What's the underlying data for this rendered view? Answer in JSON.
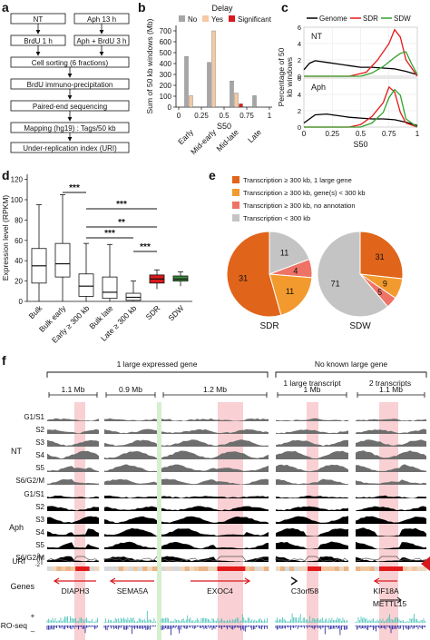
{
  "panels": {
    "a": {
      "letter": "a",
      "flow_left": [
        "NT",
        "BrdU 1 h"
      ],
      "flow_right": [
        "Aph  13 h",
        "Aph + BrdU 3 h"
      ],
      "flow_center": [
        "Cell sorting (6 fractions)",
        "BrdU immuno-precipitation",
        "Paired-end sequencing",
        "Mapping (hg19) : Tags/50 kb",
        "Under-replication index (URI)"
      ]
    },
    "b": {
      "letter": "b",
      "legend_title": "Delay",
      "legend": [
        "No",
        "Yes",
        "Significant"
      ],
      "colors": {
        "No": "#a6a6a6",
        "Yes": "#f5c9a2",
        "Significant": "#d7191c"
      }
    },
    "c": {
      "letter": "c",
      "legend": [
        "Genome",
        "SDR",
        "SDW"
      ],
      "colors": {
        "Genome": "#000000",
        "SDR": "#e31a1c",
        "SDW": "#33a02c"
      },
      "sub_labels": [
        "NT",
        "Aph"
      ]
    },
    "d": {
      "letter": "d",
      "significance": [
        "***",
        "***",
        "**",
        "***",
        "***"
      ],
      "colors": {
        "SDR": "#d7191c",
        "SDW": "#3d8b3d",
        "others": "#ffffff"
      }
    },
    "e": {
      "letter": "e",
      "legend": [
        "Transcription ≥ 300 kb, 1 large gene",
        "Transcription ≥ 300 kb, gene(s) < 300 kb",
        "Transcription ≥ 300 kb, no annotation",
        "Transcription < 300 kb"
      ],
      "colors": [
        "#e0641a",
        "#f39a2f",
        "#ee7366",
        "#c4c4c4"
      ],
      "labels": [
        "SDR",
        "SDW"
      ]
    },
    "f": {
      "letter": "f",
      "groups": [
        "1 large expressed gene",
        "No known large gene"
      ],
      "subgroups": [
        "1 large transcript",
        "2 transcripts"
      ],
      "scales": [
        "1.1 Mb",
        "0.9 Mb",
        "1.2 Mb",
        "1 Mb",
        "1.1 Mb"
      ],
      "track_labels": [
        "G1/S1",
        "S2",
        "S3",
        "S4",
        "S5",
        "S6/G2/M"
      ],
      "conditions": [
        "NT",
        "Aph"
      ],
      "uri_label": "URI",
      "uri_ticks": [
        "2",
        "0",
        "-2"
      ],
      "genes_label": "Genes",
      "gro_label": "GRO-seq",
      "gro_signs": [
        "+",
        "–"
      ],
      "gene_names": [
        "DIAPH3",
        "SEMA5A",
        "EXOC4",
        "C3orf58",
        "KIF18A",
        "METTL15"
      ],
      "colors": {
        "nt": "#6e6e6e",
        "aph": "#000000",
        "gro_plus": "#3cbfb4",
        "gro_minus": "#1a1a9a",
        "gene": "#d7191c",
        "hl_red": "#f4a9ae",
        "hl_green": "#b2e3a6"
      }
    }
  },
  "chart_data": [
    {
      "type": "bar",
      "panel": "b",
      "title": "Delay",
      "xlabel": "S50",
      "ylabel": "Sum of 50 kb windows (Mb)",
      "categories": [
        "Early",
        "Mid-early",
        "Mid-late",
        "Late"
      ],
      "x_ticks": [
        "0",
        "0.25",
        "0.5",
        "0.75",
        "1"
      ],
      "y_ticks": [
        "0",
        "100",
        "200",
        "300",
        "400",
        "500",
        "600",
        "700"
      ],
      "ylim": [
        0,
        750
      ],
      "series": [
        {
          "name": "No",
          "values": [
            465,
            410,
            240,
            105
          ]
        },
        {
          "name": "Yes",
          "values": [
            105,
            700,
            130,
            0
          ]
        },
        {
          "name": "Significant",
          "values": [
            0,
            0,
            30,
            0
          ]
        }
      ]
    },
    {
      "type": "line",
      "panel": "c",
      "xlabel": "S50",
      "ylabel": "Percentage of 50 kb windows",
      "x_ticks": [
        "0",
        "0.25",
        "0.5",
        "0.75",
        "1"
      ],
      "y_ticks": [
        "0",
        "2",
        "4",
        "6"
      ],
      "ylim": [
        0,
        6
      ],
      "panels": [
        {
          "name": "NT",
          "series": [
            {
              "name": "Genome",
              "x": [
                0,
                0.05,
                0.1,
                0.2,
                0.3,
                0.4,
                0.5,
                0.6,
                0.7,
                0.8,
                0.9,
                1.0
              ],
              "y": [
                0.8,
                1.6,
                1.9,
                1.7,
                1.5,
                1.3,
                1.1,
                1.1,
                1.0,
                0.9,
                0.6,
                0.2
              ]
            },
            {
              "name": "SDR",
              "x": [
                0,
                0.4,
                0.55,
                0.65,
                0.75,
                0.8,
                0.85,
                0.9,
                1.0
              ],
              "y": [
                0,
                0,
                0.5,
                2.0,
                4.0,
                5.7,
                4.8,
                2.0,
                0
              ]
            },
            {
              "name": "SDW",
              "x": [
                0,
                0.5,
                0.6,
                0.7,
                0.8,
                0.85,
                0.9,
                0.95,
                1.0
              ],
              "y": [
                0,
                0,
                0.4,
                1.2,
                2.3,
                2.8,
                3.0,
                1.5,
                0.2
              ]
            }
          ]
        },
        {
          "name": "Aph",
          "series": [
            {
              "name": "Genome",
              "x": [
                0,
                0.1,
                0.2,
                0.3,
                0.4,
                0.5,
                0.6,
                0.7,
                0.8,
                0.9,
                1.0
              ],
              "y": [
                0.5,
                1.5,
                1.6,
                1.4,
                1.2,
                1.1,
                1.0,
                1.0,
                0.9,
                0.6,
                0.2
              ]
            },
            {
              "name": "SDR",
              "x": [
                0,
                0.4,
                0.5,
                0.6,
                0.7,
                0.75,
                0.8,
                0.85,
                0.9,
                1.0
              ],
              "y": [
                0,
                0,
                0.3,
                1.3,
                3.0,
                4.9,
                4.3,
                1.8,
                0.5,
                0
              ]
            },
            {
              "name": "SDW",
              "x": [
                0,
                0.5,
                0.6,
                0.7,
                0.75,
                0.8,
                0.85,
                0.9,
                1.0
              ],
              "y": [
                0,
                0,
                0.5,
                1.8,
                3.6,
                4.6,
                3.9,
                1.0,
                0
              ]
            }
          ]
        }
      ]
    },
    {
      "type": "box",
      "panel": "d",
      "ylabel": "Expression level (RPKM)",
      "y_ticks": [
        "0",
        "20",
        "40",
        "60",
        "80",
        "100",
        "120"
      ],
      "ylim": [
        0,
        125
      ],
      "categories": [
        "Bulk",
        "Bulk early",
        "Early ≥ 300 kb",
        "Bulk late",
        "Late ≥ 300 kb",
        "SDR",
        "SDW"
      ],
      "boxes": [
        {
          "min": 0,
          "q1": 18,
          "median": 35,
          "q3": 52,
          "max": 95
        },
        {
          "min": 0,
          "q1": 24,
          "median": 37,
          "q3": 57,
          "max": 105
        },
        {
          "min": 0,
          "q1": 5,
          "median": 15,
          "q3": 27,
          "max": 57
        },
        {
          "min": 0,
          "q1": 3,
          "median": 9,
          "q3": 24,
          "max": 56
        },
        {
          "min": 0,
          "q1": 1,
          "median": 4,
          "q3": 8,
          "max": 20
        },
        {
          "min": 12,
          "q1": 18,
          "median": 22,
          "q3": 26,
          "max": 31
        },
        {
          "min": 15,
          "q1": 20,
          "median": 22,
          "q3": 25,
          "max": 29
        }
      ]
    },
    {
      "type": "pie",
      "panel": "e",
      "pies": [
        {
          "name": "SDR",
          "labels": [
            "Transcription ≥ 300 kb, 1 large gene",
            "Transcription ≥ 300 kb, gene(s) < 300 kb",
            "Transcription ≥ 300 kb, no annotation",
            "Transcription < 300 kb"
          ],
          "values": [
            31,
            11,
            4,
            11
          ]
        },
        {
          "name": "SDW",
          "labels": [
            "Transcription ≥ 300 kb, 1 large gene",
            "Transcription ≥ 300 kb, gene(s) < 300 kb",
            "Transcription ≥ 300 kb, no annotation",
            "Transcription < 300 kb"
          ],
          "values": [
            31,
            9,
            5,
            71
          ]
        }
      ]
    }
  ]
}
